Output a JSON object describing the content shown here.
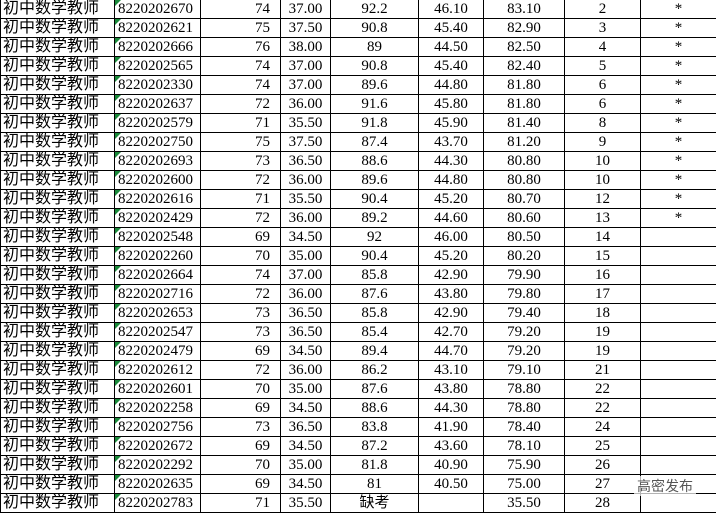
{
  "table": {
    "rows": [
      [
        "初中数学教师",
        "8220202670",
        "74",
        "37.00",
        "92.2",
        "46.10",
        "83.10",
        "2",
        "*"
      ],
      [
        "初中数学教师",
        "8220202621",
        "75",
        "37.50",
        "90.8",
        "45.40",
        "82.90",
        "3",
        "*"
      ],
      [
        "初中数学教师",
        "8220202666",
        "76",
        "38.00",
        "89",
        "44.50",
        "82.50",
        "4",
        "*"
      ],
      [
        "初中数学教师",
        "8220202565",
        "74",
        "37.00",
        "90.8",
        "45.40",
        "82.40",
        "5",
        "*"
      ],
      [
        "初中数学教师",
        "8220202330",
        "74",
        "37.00",
        "89.6",
        "44.80",
        "81.80",
        "6",
        "*"
      ],
      [
        "初中数学教师",
        "8220202637",
        "72",
        "36.00",
        "91.6",
        "45.80",
        "81.80",
        "6",
        "*"
      ],
      [
        "初中数学教师",
        "8220202579",
        "71",
        "35.50",
        "91.8",
        "45.90",
        "81.40",
        "8",
        "*"
      ],
      [
        "初中数学教师",
        "8220202750",
        "75",
        "37.50",
        "87.4",
        "43.70",
        "81.20",
        "9",
        "*"
      ],
      [
        "初中数学教师",
        "8220202693",
        "73",
        "36.50",
        "88.6",
        "44.30",
        "80.80",
        "10",
        "*"
      ],
      [
        "初中数学教师",
        "8220202600",
        "72",
        "36.00",
        "89.6",
        "44.80",
        "80.80",
        "10",
        "*"
      ],
      [
        "初中数学教师",
        "8220202616",
        "71",
        "35.50",
        "90.4",
        "45.20",
        "80.70",
        "12",
        "*"
      ],
      [
        "初中数学教师",
        "8220202429",
        "72",
        "36.00",
        "89.2",
        "44.60",
        "80.60",
        "13",
        "*"
      ],
      [
        "初中数学教师",
        "8220202548",
        "69",
        "34.50",
        "92",
        "46.00",
        "80.50",
        "14"
      ],
      [
        "初中数学教师",
        "8220202260",
        "70",
        "35.00",
        "90.4",
        "45.20",
        "80.20",
        "15"
      ],
      [
        "初中数学教师",
        "8220202664",
        "74",
        "37.00",
        "85.8",
        "42.90",
        "79.90",
        "16"
      ],
      [
        "初中数学教师",
        "8220202716",
        "72",
        "36.00",
        "87.6",
        "43.80",
        "79.80",
        "17"
      ],
      [
        "初中数学教师",
        "8220202653",
        "73",
        "36.50",
        "85.8",
        "42.90",
        "79.40",
        "18"
      ],
      [
        "初中数学教师",
        "8220202547",
        "73",
        "36.50",
        "85.4",
        "42.70",
        "79.20",
        "19"
      ],
      [
        "初中数学教师",
        "8220202479",
        "69",
        "34.50",
        "89.4",
        "44.70",
        "79.20",
        "19"
      ],
      [
        "初中数学教师",
        "8220202612",
        "72",
        "36.00",
        "86.2",
        "43.10",
        "79.10",
        "21"
      ],
      [
        "初中数学教师",
        "8220202601",
        "70",
        "35.00",
        "87.6",
        "43.80",
        "78.80",
        "22"
      ],
      [
        "初中数学教师",
        "8220202258",
        "69",
        "34.50",
        "88.6",
        "44.30",
        "78.80",
        "22"
      ],
      [
        "初中数学教师",
        "8220202756",
        "73",
        "36.50",
        "83.8",
        "41.90",
        "78.40",
        "24"
      ],
      [
        "初中数学教师",
        "8220202672",
        "69",
        "34.50",
        "87.2",
        "43.60",
        "78.10",
        "25"
      ],
      [
        "初中数学教师",
        "8220202292",
        "70",
        "35.00",
        "81.8",
        "40.90",
        "75.90",
        "26"
      ],
      [
        "初中数学教师",
        "8220202635",
        "69",
        "34.50",
        "81",
        "40.50",
        "75.00",
        "27"
      ],
      [
        "初中数学教师",
        "8220202783",
        "71",
        "35.50",
        "缺考",
        null,
        "35.50",
        "28"
      ]
    ]
  },
  "watermark": "高密发布"
}
